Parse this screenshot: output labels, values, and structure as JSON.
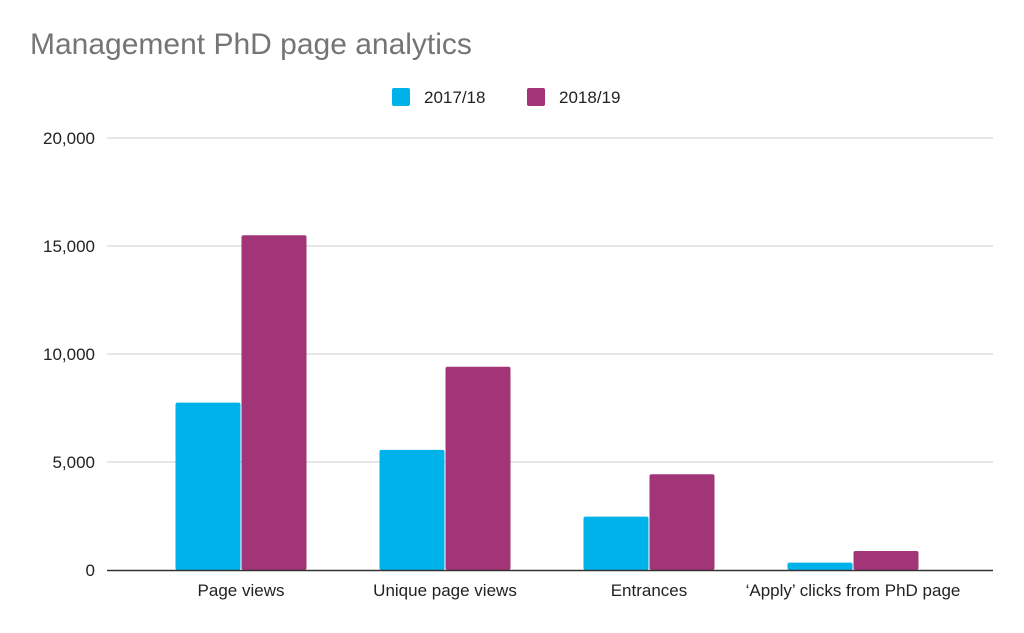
{
  "chart_data": {
    "type": "bar",
    "title": "Management PhD page analytics",
    "xlabel": "",
    "ylabel": "",
    "categories": [
      "Page views",
      "Unique page views",
      "Entrances",
      "‘Apply’ clicks from PhD page"
    ],
    "series": [
      {
        "name": "2017/18",
        "color": "#00b2ea",
        "values": [
          7750,
          5560,
          2470,
          340
        ]
      },
      {
        "name": "2018/19",
        "color": "#a23577",
        "values": [
          15500,
          9410,
          4430,
          880
        ]
      }
    ],
    "ylim": [
      0,
      20000
    ],
    "yticks": [
      0,
      5000,
      10000,
      15000,
      20000
    ],
    "ytick_labels": [
      "0",
      "5,000",
      "10,000",
      "15,000",
      "20,000"
    ],
    "grid": true,
    "legend_position": "top-center"
  }
}
